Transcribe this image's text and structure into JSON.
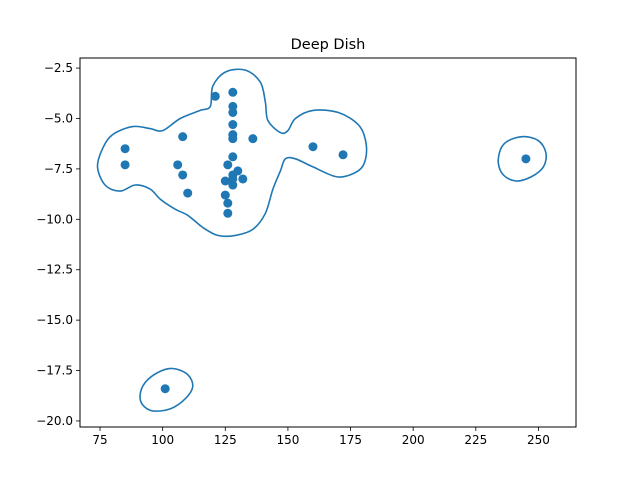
{
  "chart_data": {
    "type": "scatter",
    "title": "Deep Dish",
    "xlabel": "",
    "ylabel": "",
    "xlim": [
      67,
      265
    ],
    "ylim": [
      -20.3,
      -2.0
    ],
    "xticks": [
      75,
      100,
      125,
      150,
      175,
      200,
      225,
      250
    ],
    "yticks": [
      -2.5,
      -5.0,
      -7.5,
      -10.0,
      -12.5,
      -15.0,
      -17.5,
      -20.0
    ],
    "xtick_labels": [
      "75",
      "100",
      "125",
      "150",
      "175",
      "200",
      "225",
      "250"
    ],
    "ytick_labels": [
      "−2.5",
      "−5.0",
      "−7.5",
      "−10.0",
      "−12.5",
      "−15.0",
      "−17.5",
      "−20.0"
    ],
    "grid": false,
    "color": "#1f77b4",
    "points": [
      {
        "x": 121,
        "y": -3.9
      },
      {
        "x": 128,
        "y": -3.7
      },
      {
        "x": 128,
        "y": -4.4
      },
      {
        "x": 128,
        "y": -4.7
      },
      {
        "x": 128,
        "y": -5.3
      },
      {
        "x": 108,
        "y": -5.9
      },
      {
        "x": 128,
        "y": -5.8
      },
      {
        "x": 128,
        "y": -6.0
      },
      {
        "x": 136,
        "y": -6.0
      },
      {
        "x": 160,
        "y": -6.4
      },
      {
        "x": 85,
        "y": -6.5
      },
      {
        "x": 172,
        "y": -6.8
      },
      {
        "x": 128,
        "y": -6.9
      },
      {
        "x": 126,
        "y": -7.3
      },
      {
        "x": 85,
        "y": -7.3
      },
      {
        "x": 106,
        "y": -7.3
      },
      {
        "x": 130,
        "y": -7.6
      },
      {
        "x": 128,
        "y": -7.8
      },
      {
        "x": 108,
        "y": -7.8
      },
      {
        "x": 128,
        "y": -8.0
      },
      {
        "x": 132,
        "y": -8.0
      },
      {
        "x": 125,
        "y": -8.1
      },
      {
        "x": 128,
        "y": -8.3
      },
      {
        "x": 110,
        "y": -8.7
      },
      {
        "x": 125,
        "y": -8.8
      },
      {
        "x": 126,
        "y": -9.2
      },
      {
        "x": 126,
        "y": -9.7
      },
      {
        "x": 245,
        "y": -7.0
      },
      {
        "x": 101,
        "y": -18.4
      }
    ],
    "contours": [
      [
        [
          76,
          -6.5
        ],
        [
          80,
          -5.8
        ],
        [
          88,
          -5.4
        ],
        [
          95,
          -5.5
        ],
        [
          100,
          -5.6
        ],
        [
          107,
          -5.0
        ],
        [
          115,
          -4.6
        ],
        [
          119,
          -4.4
        ],
        [
          120,
          -3.4
        ],
        [
          125,
          -2.7
        ],
        [
          133,
          -2.6
        ],
        [
          139,
          -3.2
        ],
        [
          141,
          -4.2
        ],
        [
          142,
          -5.1
        ],
        [
          147,
          -5.7
        ],
        [
          150,
          -5.6
        ],
        [
          153,
          -5.0
        ],
        [
          160,
          -4.6
        ],
        [
          170,
          -4.7
        ],
        [
          178,
          -5.3
        ],
        [
          181,
          -6.1
        ],
        [
          181,
          -7.0
        ],
        [
          178,
          -7.6
        ],
        [
          170,
          -7.9
        ],
        [
          160,
          -7.4
        ],
        [
          153,
          -7.0
        ],
        [
          149,
          -7.0
        ],
        [
          147,
          -7.6
        ],
        [
          144,
          -8.5
        ],
        [
          141,
          -9.7
        ],
        [
          136,
          -10.5
        ],
        [
          129,
          -10.8
        ],
        [
          122,
          -10.8
        ],
        [
          116,
          -10.4
        ],
        [
          110,
          -9.8
        ],
        [
          105,
          -9.5
        ],
        [
          99,
          -9.0
        ],
        [
          95,
          -8.5
        ],
        [
          89,
          -8.3
        ],
        [
          83,
          -8.6
        ],
        [
          77,
          -8.3
        ],
        [
          74,
          -7.4
        ],
        [
          76,
          -6.5
        ]
      ],
      [
        [
          235,
          -6.5
        ],
        [
          238,
          -6.1
        ],
        [
          244,
          -5.9
        ],
        [
          250,
          -6.1
        ],
        [
          253,
          -6.7
        ],
        [
          252,
          -7.4
        ],
        [
          247,
          -7.9
        ],
        [
          241,
          -8.1
        ],
        [
          236,
          -7.8
        ],
        [
          234,
          -7.2
        ],
        [
          235,
          -6.5
        ]
      ],
      [
        [
          91,
          -18.7
        ],
        [
          93,
          -18.1
        ],
        [
          98,
          -17.6
        ],
        [
          104,
          -17.4
        ],
        [
          110,
          -17.7
        ],
        [
          112,
          -18.3
        ],
        [
          109,
          -18.9
        ],
        [
          103,
          -19.4
        ],
        [
          96,
          -19.5
        ],
        [
          92,
          -19.2
        ],
        [
          91,
          -18.7
        ]
      ]
    ]
  }
}
